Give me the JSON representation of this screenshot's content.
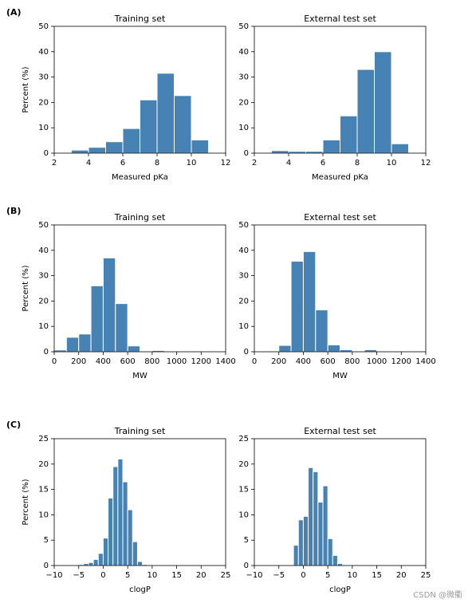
{
  "watermark": "CSDN @微衢",
  "chart_data": [
    {
      "type": "histogram",
      "panel_label": "(A)",
      "title": "Training set",
      "xlabel": "Measured pKa",
      "ylabel": "Percent (%)",
      "color": "#4682b4",
      "bins": [
        3,
        4,
        5,
        6,
        7,
        8,
        9,
        10,
        11
      ],
      "values": [
        1.2,
        2.3,
        4.5,
        9.7,
        21,
        31.5,
        22.7,
        5.2
      ],
      "xlim": [
        2,
        12
      ],
      "xticks": [
        2,
        4,
        6,
        8,
        10,
        12
      ],
      "ylim": [
        0,
        50
      ],
      "yticks": [
        0,
        10,
        20,
        30,
        40,
        50
      ]
    },
    {
      "type": "histogram",
      "title": "External test set",
      "xlabel": "Measured pKa",
      "color": "#4682b4",
      "bins": [
        3,
        4,
        5,
        6,
        7,
        8,
        9,
        10,
        11
      ],
      "values": [
        1,
        0.7,
        0.7,
        5.2,
        14.7,
        33,
        40,
        3.7
      ],
      "xlim": [
        2,
        12
      ],
      "xticks": [
        2,
        4,
        6,
        8,
        10,
        12
      ],
      "ylim": [
        0,
        50
      ],
      "yticks": [
        0,
        10,
        20,
        30,
        40,
        50
      ]
    },
    {
      "type": "histogram",
      "panel_label": "(B)",
      "title": "Training set",
      "xlabel": "MW",
      "ylabel": "Percent (%)",
      "color": "#4682b4",
      "bins": [
        0,
        100,
        200,
        300,
        400,
        500,
        600,
        700,
        800,
        900,
        1000,
        1100,
        1200
      ],
      "values": [
        0.7,
        5.7,
        7,
        26,
        37,
        19,
        2.3,
        0.2,
        0.5,
        0.2,
        0.1,
        0.1
      ],
      "xlim": [
        0,
        1400
      ],
      "xticks": [
        0,
        200,
        400,
        600,
        800,
        1000,
        1200,
        1400
      ],
      "ylim": [
        0,
        50
      ],
      "yticks": [
        0,
        10,
        20,
        30,
        40,
        50
      ]
    },
    {
      "type": "histogram",
      "title": "External test set",
      "xlabel": "MW",
      "color": "#4682b4",
      "bins": [
        200,
        300,
        400,
        500,
        600,
        700,
        800,
        900,
        1000
      ],
      "values": [
        2.5,
        35.7,
        39.5,
        16.5,
        2.7,
        0.8,
        0.2,
        0.8
      ],
      "xlim": [
        0,
        1400
      ],
      "xticks": [
        0,
        200,
        400,
        600,
        800,
        1000,
        1200,
        1400
      ],
      "ylim": [
        0,
        50
      ],
      "yticks": [
        0,
        10,
        20,
        30,
        40,
        50
      ]
    },
    {
      "type": "histogram",
      "panel_label": "(C)",
      "title": "Training set",
      "xlabel": "clogP",
      "ylabel": "Percent (%)",
      "color": "#4682b4",
      "bins": [
        -6,
        -5,
        -4,
        -3,
        -2,
        -1,
        0,
        1,
        2,
        3,
        4,
        5,
        6,
        7,
        8,
        9
      ],
      "values": [
        0.1,
        0.2,
        0.4,
        0.6,
        1.2,
        2.4,
        5.4,
        13.3,
        19.5,
        21,
        16.5,
        11,
        4.7,
        0.8,
        0.2
      ],
      "xlim": [
        -10,
        25
      ],
      "xticks": [
        {
          "value": -10,
          "label": "−10"
        },
        {
          "value": -5,
          "label": "−5"
        },
        0,
        5,
        10,
        15,
        20,
        25
      ],
      "ylim": [
        0,
        25
      ],
      "yticks": [
        0,
        5,
        10,
        15,
        20,
        25
      ]
    },
    {
      "type": "histogram",
      "title": "External test set",
      "xlabel": "clogP",
      "color": "#4682b4",
      "bins": [
        -2,
        -1,
        0,
        1,
        2,
        3,
        4,
        5,
        6,
        7,
        8,
        9
      ],
      "values": [
        4,
        9,
        9.7,
        19.3,
        18.5,
        12.5,
        15.7,
        5.3,
        2,
        0.4,
        0.1
      ],
      "xlim": [
        -10,
        25
      ],
      "xticks": [
        {
          "value": -10,
          "label": "−10"
        },
        {
          "value": -5,
          "label": "−5"
        },
        0,
        5,
        10,
        15,
        20,
        25
      ],
      "ylim": [
        0,
        25
      ],
      "yticks": [
        0,
        5,
        10,
        15,
        20,
        25
      ]
    }
  ]
}
